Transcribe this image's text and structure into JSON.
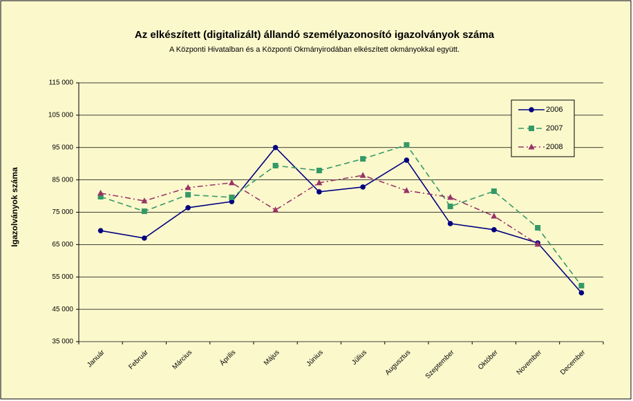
{
  "chart_data": {
    "type": "line",
    "title": "Az elkészített (digitalizált) állandó személyazonosító igazolványok száma",
    "subtitle": "A Központi Hivatalban és a Központi Okmányirodában elkészített okmányokkal együtt.",
    "y_label": "Igazolványok száma",
    "categories": [
      "Január",
      "Február",
      "Március",
      "Április",
      "Május",
      "Június",
      "Július",
      "Augusztus",
      "Szeptember",
      "Október",
      "November",
      "December"
    ],
    "series": [
      {
        "name": "2006",
        "color": "#000080",
        "marker": "circle",
        "dash": "none",
        "values": [
          69300,
          67000,
          76400,
          78300,
          95000,
          81300,
          82800,
          91100,
          71500,
          69600,
          65500,
          50100
        ]
      },
      {
        "name": "2007",
        "color": "#339966",
        "marker": "square",
        "dash": "8 5",
        "values": [
          79800,
          75300,
          80400,
          79600,
          89400,
          87900,
          91500,
          95800,
          76800,
          81500,
          70200,
          52300
        ]
      },
      {
        "name": "2008",
        "color": "#993366",
        "marker": "triangle",
        "dash": "8 4 2 4",
        "values": [
          80900,
          78500,
          82600,
          84100,
          75700,
          84100,
          86400,
          81700,
          79600,
          73800,
          65100,
          null
        ]
      }
    ],
    "ylim": [
      35000,
      115000
    ],
    "yticks": [
      {
        "value": 35000,
        "label": "35 000"
      },
      {
        "value": 45000,
        "label": "45 000"
      },
      {
        "value": 55000,
        "label": "55 000"
      },
      {
        "value": 65000,
        "label": "65 000"
      },
      {
        "value": 75000,
        "label": "75 000"
      },
      {
        "value": 85000,
        "label": "85 000"
      },
      {
        "value": 95000,
        "label": "95 000"
      },
      {
        "value": 105000,
        "label": "105 000"
      },
      {
        "value": 115000,
        "label": "115 000"
      }
    ],
    "grid": true,
    "legend": "top-right"
  }
}
